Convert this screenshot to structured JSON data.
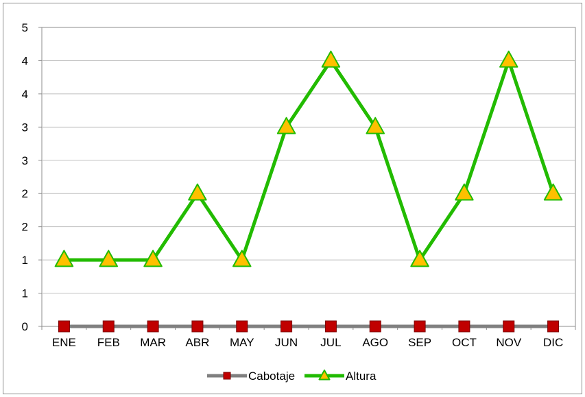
{
  "chart_data": {
    "type": "line",
    "title": "",
    "xlabel": "",
    "ylabel": "",
    "categories": [
      "ENE",
      "FEB",
      "MAR",
      "ABR",
      "MAY",
      "JUN",
      "JUL",
      "AGO",
      "SEP",
      "OCT",
      "NOV",
      "DIC"
    ],
    "y_ticks": [
      "0",
      "1",
      "1",
      "2",
      "2",
      "3",
      "3",
      "4",
      "4",
      "5"
    ],
    "ylim": [
      0,
      4.5
    ],
    "grid": true,
    "legend_position": "bottom",
    "series": [
      {
        "name": "Cabotaje",
        "values": [
          0,
          0,
          0,
          0,
          0,
          0,
          0,
          0,
          0,
          0,
          0,
          0
        ],
        "line_color": "#808080",
        "marker": "square",
        "marker_color": "#c00000"
      },
      {
        "name": "Altura",
        "values": [
          1,
          1,
          1,
          2,
          1,
          3,
          4,
          3,
          1,
          2,
          4,
          2
        ],
        "line_color": "#22bb00",
        "marker": "triangle",
        "marker_color": "#ffc000"
      }
    ]
  }
}
